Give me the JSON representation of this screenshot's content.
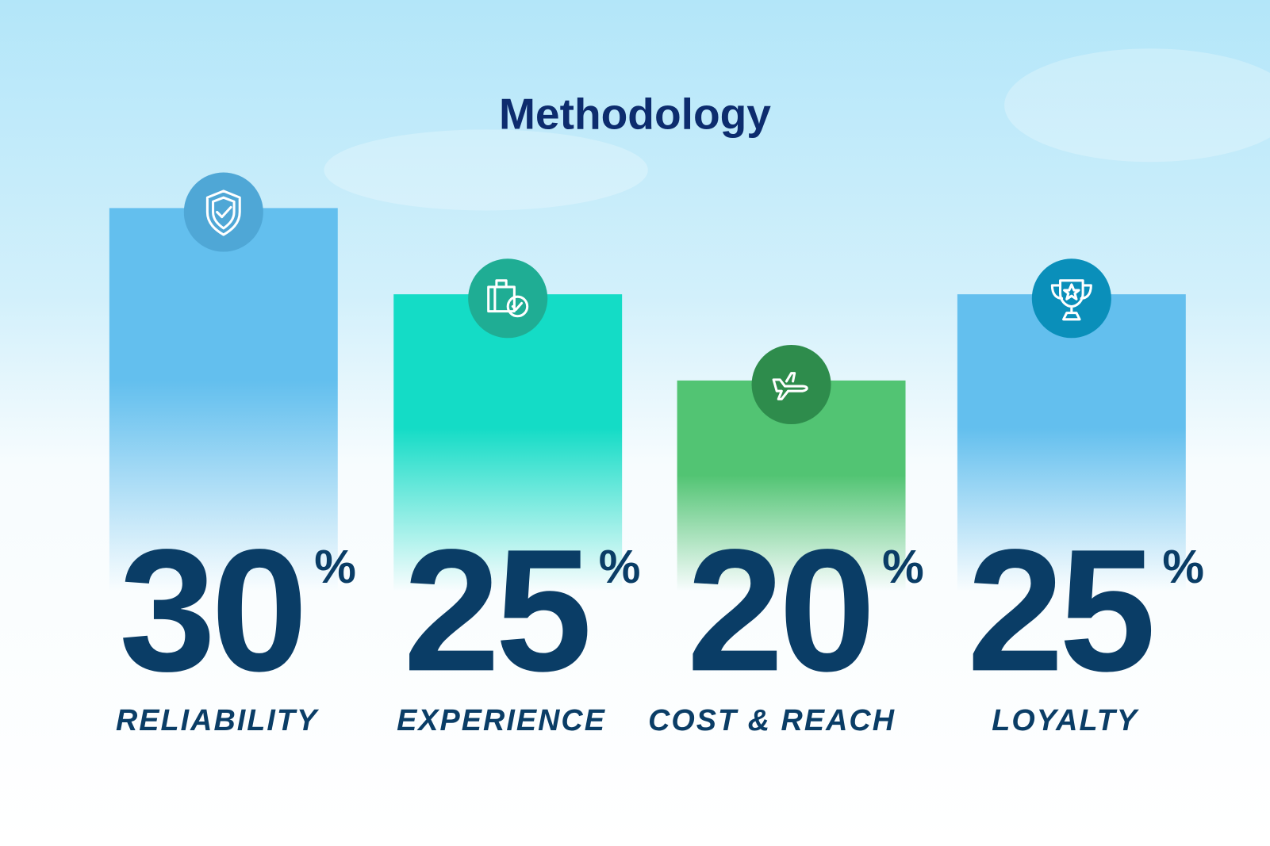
{
  "chart_data": {
    "type": "bar",
    "title": "Methodology",
    "categories": [
      "RELIABILITY",
      "EXPERIENCE",
      "COST & REACH",
      "LOYALTY"
    ],
    "values": [
      30,
      25,
      20,
      25
    ],
    "value_labels": [
      "30%",
      "25%",
      "20%",
      "25%"
    ],
    "colors": [
      "#63bfee",
      "#14dcc6",
      "#52c473",
      "#63bfee"
    ]
  }
}
